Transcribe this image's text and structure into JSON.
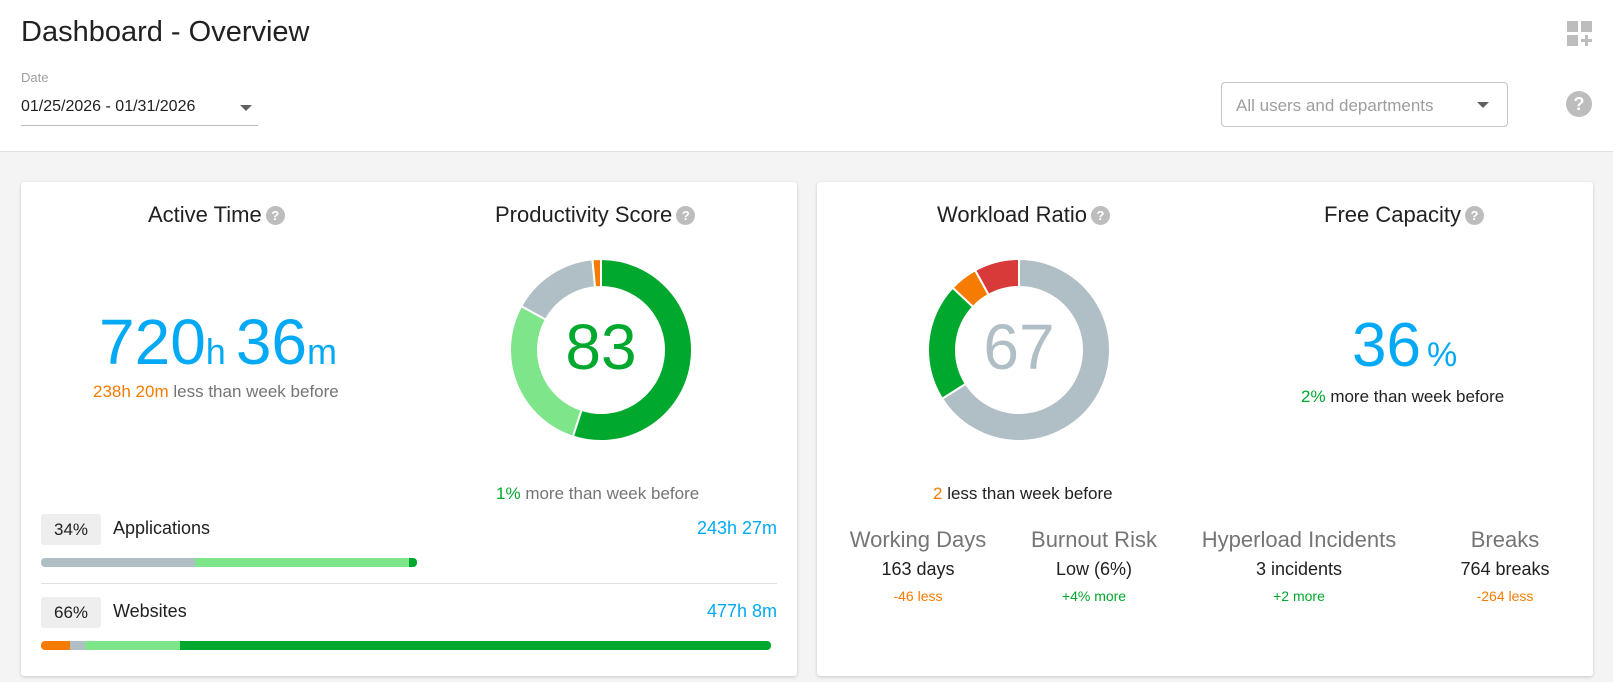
{
  "header": {
    "title": "Dashboard - Overview",
    "date_label": "Date",
    "date_range": "01/25/2026 - 01/31/2026",
    "users_placeholder": "All users and departments"
  },
  "icons": {
    "grid": "add-widget-grid-icon",
    "help": "help-circle-icon",
    "dropdown": "caret-down-icon"
  },
  "colors": {
    "accent_blue": "#03a9f4",
    "green_dark": "#00a82d",
    "green_light": "#7ee58a",
    "gray": "#b0bec5",
    "orange": "#f57c00",
    "red": "#d83a3a"
  },
  "active_time": {
    "title": "Active Time",
    "hours": "720",
    "hours_unit": "h",
    "minutes": "36",
    "minutes_unit": "m",
    "delta_value": "238h 20m",
    "delta_text": "less than week before",
    "applications": {
      "percent": "34%",
      "label": "Applications",
      "value": "243h 27m",
      "segments": [
        {
          "color": "#b0bec5",
          "fraction": 0.41
        },
        {
          "color": "#7ee58a",
          "fraction": 0.57
        },
        {
          "color": "#00a82d",
          "fraction": 0.02
        }
      ]
    },
    "websites": {
      "percent": "66%",
      "label": "Websites",
      "value": "477h 8m",
      "segments": [
        {
          "color": "#f57c00",
          "fraction": 0.04
        },
        {
          "color": "#b0bec5",
          "fraction": 0.02
        },
        {
          "color": "#7ee58a",
          "fraction": 0.13
        },
        {
          "color": "#00a82d",
          "fraction": 0.81
        }
      ]
    }
  },
  "productivity": {
    "title": "Productivity Score",
    "score": "83",
    "delta_value": "1%",
    "delta_text": "more than week before",
    "donut": [
      {
        "color": "#00a82d",
        "fraction": 0.55
      },
      {
        "color": "#7ee58a",
        "fraction": 0.28
      },
      {
        "color": "#b0bec5",
        "fraction": 0.155
      },
      {
        "color": "#f57c00",
        "fraction": 0.015
      }
    ]
  },
  "workload": {
    "title": "Workload Ratio",
    "score": "67",
    "delta_value": "2",
    "delta_text": "less than week before",
    "donut": [
      {
        "color": "#b0bec5",
        "fraction": 0.66
      },
      {
        "color": "#00a82d",
        "fraction": 0.21
      },
      {
        "color": "#f57c00",
        "fraction": 0.05
      },
      {
        "color": "#d83a3a",
        "fraction": 0.08
      }
    ]
  },
  "free_capacity": {
    "title": "Free Capacity",
    "value": "36",
    "unit": "%",
    "delta_value": "2%",
    "delta_text": "more than week before"
  },
  "stats": [
    {
      "title": "Working Days",
      "value": "163 days",
      "delta": "-46 less",
      "color": "#f57c00"
    },
    {
      "title": "Burnout Risk",
      "value": "Low (6%)",
      "delta": "+4% more",
      "color": "#00a82d"
    },
    {
      "title": "Hyperload Incidents",
      "value": "3 incidents",
      "delta": "+2 more",
      "color": "#00a82d"
    },
    {
      "title": "Breaks",
      "value": "764 breaks",
      "delta": "-264 less",
      "color": "#f57c00"
    }
  ]
}
